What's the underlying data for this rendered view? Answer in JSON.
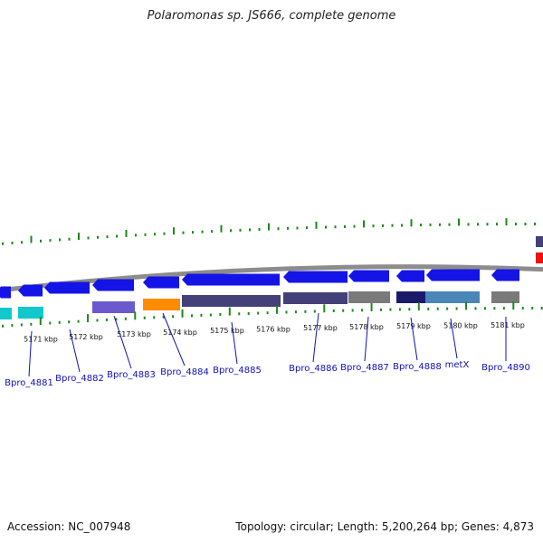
{
  "title": "Polaromonas sp. JS666, complete genome",
  "footer": {
    "accession": "Accession: NC_007948",
    "summary": "Topology: circular; Length: 5,200,264 bp; Genes: 4,873"
  },
  "colors": {
    "backbone": "#8c8c8c",
    "tick": "#1a8a1a",
    "gene_forward": "#1414e6",
    "label": "#1010bb",
    "cds_dark": "#44407a",
    "cds_gray": "#7a7a7a",
    "cds_cyan": "#12c8cc",
    "cds_orange": "#ff8c00",
    "cds_purple": "#6a5acd",
    "cds_steel": "#4a86b8",
    "cds_navy": "#1a1a6a",
    "accent_red": "#ee1111"
  },
  "kbp_labels": [
    "5171 kbp",
    "5172 kbp",
    "5173 kbp",
    "5174 kbp",
    "5175 kbp",
    "5176 kbp",
    "5177 kbp",
    "5178 kbp",
    "5179 kbp",
    "5180 kbp",
    "5181 kbp"
  ],
  "genes": [
    {
      "name": "Bpro_4881"
    },
    {
      "name": "Bpro_4882"
    },
    {
      "name": "Bpro_4883"
    },
    {
      "name": "Bpro_4884"
    },
    {
      "name": "Bpro_4885"
    },
    {
      "name": "Bpro_4886"
    },
    {
      "name": "Bpro_4887"
    },
    {
      "name": "Bpro_4888"
    },
    {
      "name": "metX"
    },
    {
      "name": "Bpro_4890"
    }
  ]
}
